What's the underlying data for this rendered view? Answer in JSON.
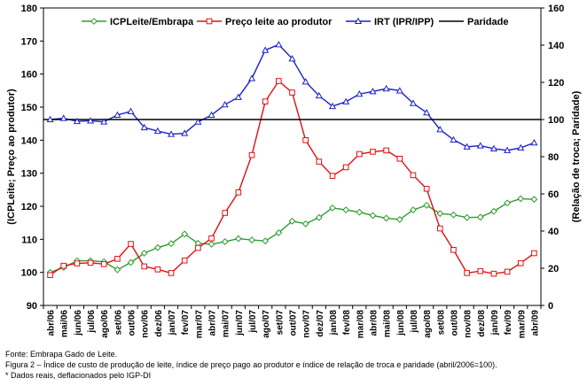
{
  "chart_data": {
    "type": "line",
    "ylabel_left": "(ICPLeite; Preço ao produtor)",
    "ylabel_right": "(Relação de troca; Paridade)",
    "ylim_left": [
      90,
      180
    ],
    "ylim_right": [
      0,
      160
    ],
    "yticks_left": [
      90,
      100,
      110,
      120,
      130,
      140,
      150,
      160,
      170,
      180
    ],
    "yticks_right": [
      0,
      20,
      40,
      60,
      80,
      100,
      120,
      140,
      160
    ],
    "grid": false,
    "legend_position": "top",
    "categories": [
      "abr/06",
      "mai/06",
      "jun/06",
      "jul/06",
      "ago/06",
      "set/06",
      "out/06",
      "nov/06",
      "dez/06",
      "jan/07",
      "fev/07",
      "mar/07",
      "abr/07",
      "mai/07",
      "jun/07",
      "jul/07",
      "ago/07",
      "set/07",
      "out/07",
      "nov/07",
      "dez/07",
      "jan/08",
      "fev/08",
      "mar/08",
      "abr/08",
      "mai/08",
      "jun/08",
      "jul/08",
      "ago/08",
      "set/08",
      "out/08",
      "nov/08",
      "dez/08",
      "jan/09",
      "fev/09",
      "mar/09",
      "abr/09"
    ],
    "series": [
      {
        "name": "ICPLeite/Embrapa",
        "axis": "left",
        "color": "#2e9b2e",
        "marker": "diamond",
        "values": [
          100,
          101.5,
          103.5,
          103.5,
          103.2,
          100.8,
          103,
          105.8,
          107.5,
          108.7,
          111.6,
          108.8,
          108.5,
          109.3,
          110.2,
          109.8,
          109.5,
          112,
          115.5,
          114.7,
          116.6,
          119.5,
          118.9,
          118.2,
          117.2,
          116.4,
          116,
          118.9,
          120.3,
          117.8,
          117.4,
          116.6,
          116.7,
          118.5,
          121,
          122.3,
          122.1
        ]
      },
      {
        "name": "Preço leite ao produtor",
        "axis": "left",
        "color": "#e01010",
        "marker": "square",
        "values": [
          99.2,
          102,
          102.7,
          102.9,
          102.5,
          104.1,
          108.6,
          101.8,
          100.9,
          99.8,
          103.6,
          107.4,
          110.3,
          118,
          124.2,
          135.5,
          151.7,
          157.9,
          154.4,
          140,
          133.5,
          129.2,
          131.8,
          135.8,
          136.5,
          136.9,
          134.4,
          129.4,
          125.3,
          113.3,
          106.8,
          99.8,
          100.4,
          99.6,
          100.2,
          102.8,
          105.8
        ]
      },
      {
        "name": "IRT (IPR/IPP)",
        "axis": "right",
        "color": "#1a22c8",
        "marker": "triangle",
        "values": [
          100,
          100.7,
          99,
          99.3,
          98.8,
          102.4,
          104.4,
          95.7,
          93.8,
          92.1,
          92.6,
          98.7,
          102.4,
          108,
          112,
          122.1,
          137.3,
          140.3,
          132.7,
          120.3,
          112.8,
          107.1,
          109.6,
          113.7,
          115.1,
          116.6,
          115.5,
          108.7,
          103.7,
          94.6,
          89.1,
          85.3,
          85.9,
          84.3,
          83.4,
          84.8,
          87.5
        ]
      },
      {
        "name": "Paridade",
        "axis": "right",
        "color": "#000000",
        "marker": "none",
        "values": [
          100,
          100,
          100,
          100,
          100,
          100,
          100,
          100,
          100,
          100,
          100,
          100,
          100,
          100,
          100,
          100,
          100,
          100,
          100,
          100,
          100,
          100,
          100,
          100,
          100,
          100,
          100,
          100,
          100,
          100,
          100,
          100,
          100,
          100,
          100,
          100,
          100
        ]
      }
    ]
  },
  "captions": {
    "source": "Fonte: Embrapa Gado de Leite.",
    "figure": "Figura 2 – Índice de custo de produção de leite, índice de preço pago ao produtor e índice de relação de troca e paridade (abril/2006=100).",
    "note": "* Dados reais, deflacionados pelo IGP-DI"
  }
}
